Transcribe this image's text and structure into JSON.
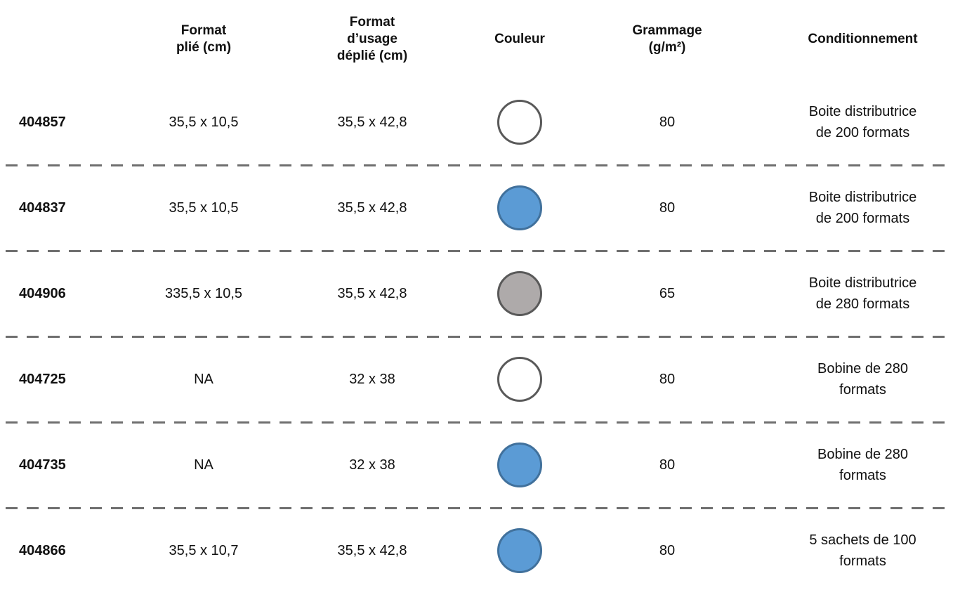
{
  "header": {
    "reference": "",
    "format_plie": "Format\nplié (cm)",
    "format_usage": "Format\nd’usage\ndéplié (cm)",
    "couleur": "Couleur",
    "grammage": "Grammage\n(g/m²)",
    "conditionnement": "Conditionnement"
  },
  "colors": {
    "blanc": {
      "fill": "#ffffff",
      "border": "#595959"
    },
    "bleu": {
      "fill": "#5b9bd5",
      "border": "#41719c"
    },
    "gris": {
      "fill": "#aeaaaa",
      "border": "#595959"
    }
  },
  "rows": [
    {
      "reference": "404857",
      "format_plie": "35,5 x 10,5",
      "format_usage": "35,5 x 42,8",
      "couleur": "blanc",
      "grammage": "80",
      "conditionnement": "Boite distributrice\nde 200 formats"
    },
    {
      "reference": "404837",
      "format_plie": "35,5 x 10,5",
      "format_usage": "35,5 x 42,8",
      "couleur": "bleu",
      "grammage": "80",
      "conditionnement": "Boite distributrice\nde 200 formats"
    },
    {
      "reference": "404906",
      "format_plie": "335,5 x 10,5",
      "format_usage": "35,5 x 42,8",
      "couleur": "gris",
      "grammage": "65",
      "conditionnement": "Boite distributrice\nde 280 formats"
    },
    {
      "reference": "404725",
      "format_plie": "NA",
      "format_usage": "32 x 38",
      "couleur": "blanc",
      "grammage": "80",
      "conditionnement": "Bobine de 280\nformats"
    },
    {
      "reference": "404735",
      "format_plie": "NA",
      "format_usage": "32 x 38",
      "couleur": "bleu",
      "grammage": "80",
      "conditionnement": "Bobine de 280\nformats"
    },
    {
      "reference": "404866",
      "format_plie": "35,5 x 10,7",
      "format_usage": "35,5 x 42,8",
      "couleur": "bleu",
      "grammage": "80",
      "conditionnement": "5 sachets de 100\nformats"
    }
  ]
}
